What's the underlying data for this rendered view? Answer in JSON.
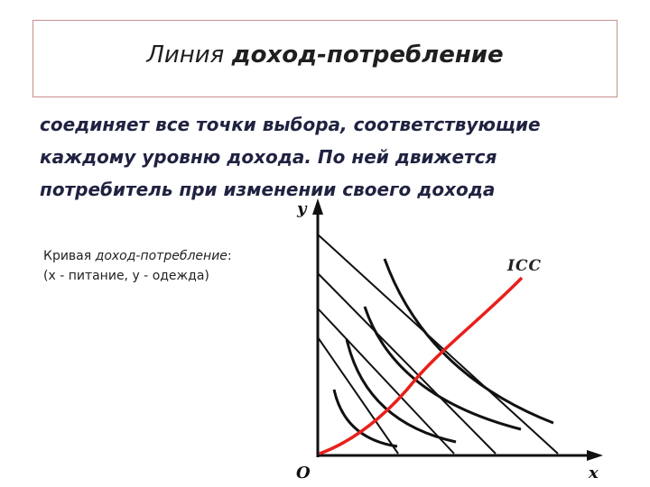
{
  "title": {
    "plain": "Линия ",
    "bold": "доход-потребление"
  },
  "description": {
    "lines": [
      "соединяет все точки выбора, соответствующие",
      "каждому уровню дохода. По ней движется",
      "потребитель при изменении своего дохода"
    ]
  },
  "caption": {
    "line1_plain": "Кривая ",
    "line1_italic": "доход-потребление",
    "line1_end": ":",
    "line2": "(x - питание, y - одежда)"
  },
  "diagram": {
    "y_axis_label": "y",
    "x_axis_label": "x",
    "origin_label": "O",
    "curve_label": "ICC",
    "curve_color": "#e8201c",
    "line_color": "#111111"
  }
}
